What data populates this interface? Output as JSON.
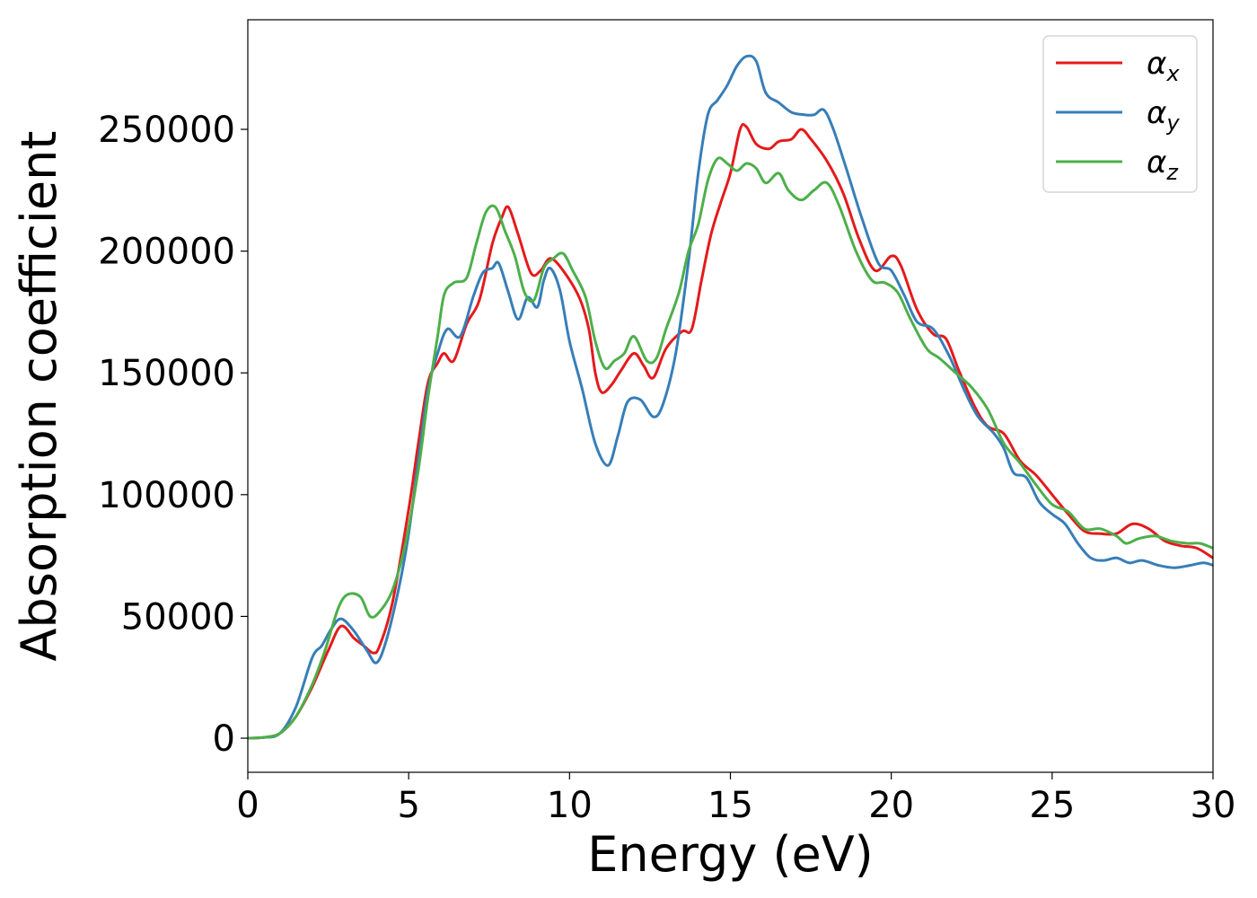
{
  "chart_data": {
    "type": "line",
    "xlabel": "Energy (eV)",
    "ylabel": "Absorption coefficient",
    "xlim": [
      0,
      30
    ],
    "ylim": [
      -14000,
      295000
    ],
    "xticks": [
      0,
      5,
      10,
      15,
      20,
      25,
      30
    ],
    "yticks": [
      0,
      50000,
      100000,
      150000,
      200000,
      250000
    ],
    "grid": false,
    "legend_position": "top-right",
    "series": [
      {
        "name": "α",
        "subscript": "x",
        "color": "#e41a1c",
        "points": [
          [
            0,
            0
          ],
          [
            0.5,
            300
          ],
          [
            1,
            2000
          ],
          [
            1.5,
            9000
          ],
          [
            2,
            21000
          ],
          [
            2.5,
            36000
          ],
          [
            2.9,
            46000
          ],
          [
            3.3,
            41000
          ],
          [
            3.6,
            38000
          ],
          [
            3.9,
            35000
          ],
          [
            4.1,
            38000
          ],
          [
            4.5,
            56000
          ],
          [
            5,
            94000
          ],
          [
            5.3,
            121000
          ],
          [
            5.6,
            146000
          ],
          [
            5.9,
            154000
          ],
          [
            6.1,
            158000
          ],
          [
            6.4,
            155000
          ],
          [
            6.8,
            170000
          ],
          [
            7.2,
            180000
          ],
          [
            7.6,
            203000
          ],
          [
            7.9,
            214000
          ],
          [
            8.1,
            218000
          ],
          [
            8.4,
            207000
          ],
          [
            8.8,
            191000
          ],
          [
            9.1,
            192000
          ],
          [
            9.4,
            197000
          ],
          [
            9.8,
            192000
          ],
          [
            10.3,
            181000
          ],
          [
            10.6,
            168000
          ],
          [
            10.8,
            150000
          ],
          [
            11,
            142000
          ],
          [
            11.3,
            145000
          ],
          [
            11.6,
            151000
          ],
          [
            12,
            158000
          ],
          [
            12.3,
            153000
          ],
          [
            12.6,
            148000
          ],
          [
            13,
            160000
          ],
          [
            13.5,
            167000
          ],
          [
            13.8,
            168000
          ],
          [
            14.1,
            188000
          ],
          [
            14.4,
            207000
          ],
          [
            14.7,
            220000
          ],
          [
            15,
            232000
          ],
          [
            15.3,
            250000
          ],
          [
            15.5,
            251000
          ],
          [
            15.8,
            244000
          ],
          [
            16.2,
            242000
          ],
          [
            16.5,
            245000
          ],
          [
            16.9,
            246000
          ],
          [
            17.2,
            250000
          ],
          [
            17.5,
            246000
          ],
          [
            18,
            237000
          ],
          [
            18.5,
            224000
          ],
          [
            19,
            205000
          ],
          [
            19.5,
            192000
          ],
          [
            20,
            198000
          ],
          [
            20.3,
            194000
          ],
          [
            20.8,
            176000
          ],
          [
            21.3,
            166000
          ],
          [
            21.7,
            164000
          ],
          [
            22.1,
            151000
          ],
          [
            22.6,
            136000
          ],
          [
            23,
            128000
          ],
          [
            23.5,
            125000
          ],
          [
            24,
            114000
          ],
          [
            24.5,
            108000
          ],
          [
            25,
            100000
          ],
          [
            25.5,
            92000
          ],
          [
            26,
            85000
          ],
          [
            26.5,
            84000
          ],
          [
            27,
            84000
          ],
          [
            27.5,
            88000
          ],
          [
            28,
            86000
          ],
          [
            28.5,
            81000
          ],
          [
            29,
            79000
          ],
          [
            29.5,
            78000
          ],
          [
            30,
            74000
          ]
        ]
      },
      {
        "name": "α",
        "subscript": "y",
        "color": "#377eb8",
        "points": [
          [
            0,
            0
          ],
          [
            0.5,
            300
          ],
          [
            1,
            2000
          ],
          [
            1.5,
            13000
          ],
          [
            2,
            33000
          ],
          [
            2.3,
            38000
          ],
          [
            2.6,
            45000
          ],
          [
            2.9,
            49000
          ],
          [
            3.3,
            44000
          ],
          [
            3.7,
            36000
          ],
          [
            4,
            31000
          ],
          [
            4.3,
            40000
          ],
          [
            4.7,
            62000
          ],
          [
            5,
            84000
          ],
          [
            5.3,
            114000
          ],
          [
            5.6,
            143000
          ],
          [
            5.9,
            158000
          ],
          [
            6.2,
            168000
          ],
          [
            6.6,
            165000
          ],
          [
            7,
            181000
          ],
          [
            7.3,
            191000
          ],
          [
            7.6,
            193000
          ],
          [
            7.8,
            195000
          ],
          [
            8.1,
            183000
          ],
          [
            8.4,
            172000
          ],
          [
            8.7,
            181000
          ],
          [
            9,
            177000
          ],
          [
            9.2,
            188000
          ],
          [
            9.4,
            193000
          ],
          [
            9.7,
            184000
          ],
          [
            10,
            163000
          ],
          [
            10.4,
            143000
          ],
          [
            10.8,
            121000
          ],
          [
            11.2,
            112000
          ],
          [
            11.5,
            124000
          ],
          [
            11.8,
            138000
          ],
          [
            12.2,
            139000
          ],
          [
            12.6,
            132000
          ],
          [
            12.9,
            137000
          ],
          [
            13.3,
            158000
          ],
          [
            13.7,
            196000
          ],
          [
            14,
            232000
          ],
          [
            14.3,
            256000
          ],
          [
            14.6,
            262000
          ],
          [
            14.9,
            268000
          ],
          [
            15.2,
            276000
          ],
          [
            15.5,
            280000
          ],
          [
            15.8,
            278000
          ],
          [
            16.1,
            265000
          ],
          [
            16.5,
            261000
          ],
          [
            16.9,
            257000
          ],
          [
            17.3,
            256000
          ],
          [
            17.6,
            256000
          ],
          [
            17.9,
            258000
          ],
          [
            18.2,
            250000
          ],
          [
            18.6,
            234000
          ],
          [
            19.1,
            213000
          ],
          [
            19.6,
            195000
          ],
          [
            20,
            192000
          ],
          [
            20.4,
            182000
          ],
          [
            20.8,
            171000
          ],
          [
            21.3,
            168000
          ],
          [
            21.8,
            157000
          ],
          [
            22.3,
            142000
          ],
          [
            22.7,
            132000
          ],
          [
            23.2,
            125000
          ],
          [
            23.5,
            119000
          ],
          [
            23.8,
            109000
          ],
          [
            24.2,
            107000
          ],
          [
            24.6,
            97000
          ],
          [
            25,
            92000
          ],
          [
            25.4,
            88000
          ],
          [
            25.8,
            80000
          ],
          [
            26.2,
            74000
          ],
          [
            26.6,
            73000
          ],
          [
            27,
            74000
          ],
          [
            27.4,
            72000
          ],
          [
            27.8,
            73000
          ],
          [
            28.3,
            71000
          ],
          [
            28.8,
            70000
          ],
          [
            29.3,
            71000
          ],
          [
            29.7,
            72000
          ],
          [
            30,
            71000
          ]
        ]
      },
      {
        "name": "α",
        "subscript": "z",
        "color": "#4daf4a",
        "points": [
          [
            0,
            0
          ],
          [
            0.5,
            300
          ],
          [
            1,
            2000
          ],
          [
            1.5,
            9000
          ],
          [
            2,
            22000
          ],
          [
            2.4,
            36000
          ],
          [
            2.8,
            53000
          ],
          [
            3.1,
            59000
          ],
          [
            3.5,
            58000
          ],
          [
            3.8,
            50000
          ],
          [
            4.1,
            52000
          ],
          [
            4.5,
            61000
          ],
          [
            4.9,
            80000
          ],
          [
            5.3,
            110000
          ],
          [
            5.6,
            140000
          ],
          [
            5.9,
            165000
          ],
          [
            6.1,
            182000
          ],
          [
            6.4,
            187000
          ],
          [
            6.8,
            189000
          ],
          [
            7.1,
            203000
          ],
          [
            7.4,
            216000
          ],
          [
            7.7,
            218000
          ],
          [
            8,
            208000
          ],
          [
            8.3,
            198000
          ],
          [
            8.6,
            183000
          ],
          [
            8.9,
            180000
          ],
          [
            9.2,
            193000
          ],
          [
            9.5,
            197000
          ],
          [
            9.8,
            199000
          ],
          [
            10.1,
            192000
          ],
          [
            10.5,
            181000
          ],
          [
            10.8,
            163000
          ],
          [
            11.1,
            152000
          ],
          [
            11.4,
            155000
          ],
          [
            11.7,
            158000
          ],
          [
            12,
            165000
          ],
          [
            12.4,
            155000
          ],
          [
            12.7,
            156000
          ],
          [
            13,
            168000
          ],
          [
            13.4,
            183000
          ],
          [
            13.7,
            200000
          ],
          [
            14,
            211000
          ],
          [
            14.3,
            229000
          ],
          [
            14.6,
            238000
          ],
          [
            14.9,
            236000
          ],
          [
            15.2,
            233000
          ],
          [
            15.5,
            236000
          ],
          [
            15.8,
            234000
          ],
          [
            16.1,
            228000
          ],
          [
            16.5,
            232000
          ],
          [
            16.8,
            225000
          ],
          [
            17.2,
            221000
          ],
          [
            17.6,
            225000
          ],
          [
            18,
            228000
          ],
          [
            18.4,
            218000
          ],
          [
            18.9,
            200000
          ],
          [
            19.4,
            188000
          ],
          [
            19.8,
            187000
          ],
          [
            20.2,
            183000
          ],
          [
            20.6,
            172000
          ],
          [
            21.1,
            160000
          ],
          [
            21.5,
            156000
          ],
          [
            22,
            150000
          ],
          [
            22.5,
            144000
          ],
          [
            23,
            135000
          ],
          [
            23.5,
            121000
          ],
          [
            24,
            113000
          ],
          [
            24.5,
            104000
          ],
          [
            25,
            96000
          ],
          [
            25.5,
            93000
          ],
          [
            26,
            86000
          ],
          [
            26.5,
            86000
          ],
          [
            27,
            83000
          ],
          [
            27.3,
            80000
          ],
          [
            27.7,
            82000
          ],
          [
            28.2,
            83000
          ],
          [
            28.7,
            81000
          ],
          [
            29.2,
            80000
          ],
          [
            29.6,
            80000
          ],
          [
            30,
            78000
          ]
        ]
      }
    ]
  }
}
